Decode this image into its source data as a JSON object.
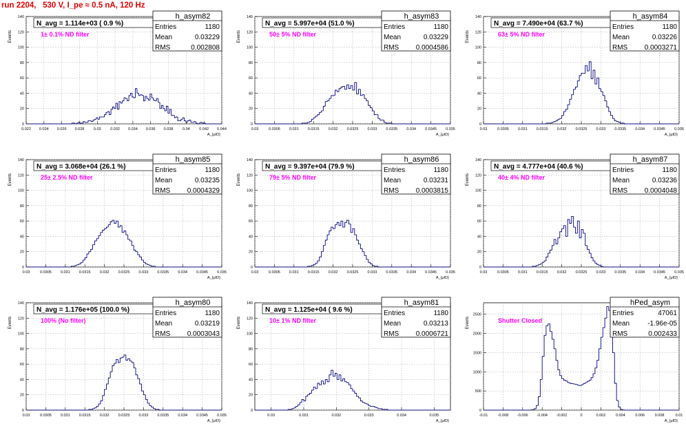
{
  "header": "run 2204,   530 V, I_pe ≈ 0.5 nA, 120 Hz",
  "chart_data": [
    {
      "type": "bar",
      "name": "h_asym82",
      "navg": "N_avg = 1.114e+03 ( 0.9 %)",
      "annotation": "1± 0.1% ND filter",
      "stats": {
        "entries": "1180",
        "mean": "0.03229",
        "rms": "0.002808"
      },
      "ylabel": "Events",
      "xlabel": "A_{μID}",
      "xlim": [
        0.022,
        0.044
      ],
      "ylim": [
        0,
        140
      ],
      "xticks": [
        "0.022",
        "0.024",
        "0.026",
        "0.028",
        "0.03",
        "0.032",
        "0.034",
        "0.036",
        "0.038",
        "0.04",
        "0.042",
        "0.044"
      ],
      "yticks": [
        "0",
        "20",
        "40",
        "60",
        "80",
        "100",
        "120",
        "140"
      ],
      "values": [
        0,
        0,
        0,
        0,
        0,
        0,
        0,
        0,
        0,
        0,
        0,
        0,
        0,
        0,
        0,
        0,
        0,
        0,
        0,
        0,
        0,
        0,
        0,
        0,
        0,
        0,
        0,
        0,
        1,
        1,
        0,
        1,
        2,
        1,
        1,
        3,
        2,
        2,
        4,
        4,
        3,
        5,
        6,
        8,
        6,
        9,
        9,
        9,
        12,
        15,
        16,
        12,
        19,
        22,
        20,
        27,
        19,
        29,
        27,
        30,
        34,
        33,
        30,
        37,
        40,
        35,
        34,
        46,
        40,
        37,
        38,
        37,
        30,
        36,
        33,
        31,
        39,
        34,
        31,
        30,
        33,
        28,
        20,
        24,
        20,
        17,
        23,
        14,
        19,
        11,
        11,
        8,
        9,
        4,
        4,
        6,
        8,
        4,
        2,
        4,
        5,
        2,
        2,
        3,
        1,
        0,
        1,
        2,
        1,
        1,
        0,
        0,
        0,
        0,
        0,
        0,
        0,
        0,
        0,
        0
      ]
    },
    {
      "type": "bar",
      "name": "h_asym83",
      "navg": "N_avg = 5.997e+04 (51.0 %)",
      "annotation": "50± 5% ND filter",
      "stats": {
        "entries": "1180",
        "mean": "0.03229",
        "rms": "0.0004586"
      },
      "ylabel": "Events",
      "xlabel": "A_{μID}",
      "xlim": [
        0.03,
        0.035
      ],
      "ylim": [
        0,
        140
      ],
      "xticks": [
        "0.03",
        "0.0305",
        "0.031",
        "0.0315",
        "0.032",
        "0.0325",
        "0.033",
        "0.0335",
        "0.034",
        "0.0345",
        "0.035"
      ],
      "yticks": [
        "0",
        "20",
        "40",
        "60",
        "80",
        "100",
        "120",
        "140"
      ],
      "values": [
        0,
        0,
        0,
        0,
        0,
        0,
        0,
        0,
        0,
        0,
        0,
        0,
        0,
        0,
        0,
        0,
        0,
        0,
        0,
        0,
        0,
        0,
        0,
        0,
        1,
        1,
        1,
        2,
        3,
        6,
        8,
        10,
        12,
        15,
        17,
        23,
        29,
        30,
        33,
        37,
        37,
        44,
        42,
        46,
        48,
        49,
        45,
        51,
        46,
        50,
        44,
        54,
        39,
        45,
        37,
        38,
        33,
        30,
        24,
        21,
        17,
        12,
        12,
        7,
        5,
        5,
        2,
        1,
        1,
        1,
        0,
        0,
        0,
        0,
        0,
        0,
        0,
        0,
        0,
        0,
        0,
        0,
        0,
        0,
        0,
        0,
        0,
        0,
        0,
        0,
        0,
        0,
        0,
        0,
        0,
        0,
        0,
        0,
        0,
        0
      ]
    },
    {
      "type": "bar",
      "name": "h_asym84",
      "navg": "N_avg = 7.490e+04 (63.7 %)",
      "annotation": "63± 5% ND filter",
      "stats": {
        "entries": "1180",
        "mean": "0.03226",
        "rms": "0.0003271"
      },
      "ylabel": "Events",
      "xlabel": "A_{μID}",
      "xlim": [
        0.03,
        0.035
      ],
      "ylim": [
        0,
        140
      ],
      "xticks": [
        "0.03",
        "0.0305",
        "0.031",
        "0.0315",
        "0.032",
        "0.0325",
        "0.033",
        "0.0335",
        "0.034",
        "0.0345",
        "0.035"
      ],
      "yticks": [
        "0",
        "20",
        "40",
        "60",
        "80",
        "100",
        "120",
        "140"
      ],
      "values": [
        0,
        0,
        0,
        0,
        0,
        0,
        0,
        0,
        0,
        0,
        0,
        0,
        0,
        0,
        0,
        0,
        0,
        0,
        0,
        0,
        0,
        0,
        0,
        0,
        0,
        0,
        0,
        0,
        0,
        0,
        0,
        0,
        1,
        1,
        1,
        2,
        3,
        4,
        6,
        7,
        11,
        16,
        19,
        25,
        32,
        38,
        45,
        48,
        56,
        63,
        66,
        66,
        76,
        69,
        81,
        59,
        70,
        52,
        60,
        46,
        42,
        37,
        30,
        22,
        16,
        11,
        7,
        4,
        3,
        2,
        1,
        1,
        0,
        0,
        0,
        0,
        0,
        0,
        0,
        0,
        0,
        0,
        0,
        0,
        0,
        0,
        0,
        0,
        0,
        0,
        0,
        0,
        0,
        0,
        0,
        0,
        0,
        0,
        0,
        0
      ]
    },
    {
      "type": "bar",
      "name": "h_asym85",
      "navg": "N_avg = 3.068e+04 (26.1 %)",
      "annotation": "25± 2.5% ND filter",
      "stats": {
        "entries": "1180",
        "mean": "0.03235",
        "rms": "0.0004329"
      },
      "ylabel": "Events",
      "xlabel": "A_{μID}",
      "xlim": [
        0.03,
        0.035
      ],
      "ylim": [
        0,
        140
      ],
      "xticks": [
        "0.03",
        "0.0305",
        "0.031",
        "0.0315",
        "0.032",
        "0.0325",
        "0.033",
        "0.0335",
        "0.034",
        "0.0345",
        "0.035"
      ],
      "yticks": [
        "0",
        "20",
        "40",
        "60",
        "80",
        "100",
        "120",
        "140"
      ],
      "values": [
        0,
        0,
        0,
        0,
        0,
        0,
        0,
        0,
        0,
        0,
        0,
        0,
        0,
        0,
        0,
        0,
        0,
        0,
        0,
        0,
        0,
        0,
        0,
        1,
        1,
        2,
        3,
        4,
        6,
        9,
        12,
        17,
        20,
        23,
        29,
        34,
        37,
        41,
        45,
        48,
        50,
        52,
        55,
        59,
        61,
        57,
        60,
        52,
        54,
        45,
        47,
        42,
        36,
        34,
        28,
        22,
        20,
        16,
        13,
        9,
        6,
        4,
        3,
        2,
        1,
        1,
        0,
        0,
        0,
        0,
        0,
        0,
        0,
        0,
        0,
        0,
        0,
        0,
        0,
        0,
        0,
        0,
        0,
        0,
        0,
        0,
        0,
        0,
        0,
        0,
        0,
        0,
        0,
        0,
        0,
        0,
        0,
        0,
        0,
        0
      ]
    },
    {
      "type": "bar",
      "name": "h_asym86",
      "navg": "N_avg = 9.397e+04 (79.9 %)",
      "annotation": "79± 5% ND filter",
      "stats": {
        "entries": "1180",
        "mean": "0.03231",
        "rms": "0.0003815"
      },
      "ylabel": "Events",
      "xlabel": "A_{μID}",
      "xlim": [
        0.03,
        0.035
      ],
      "ylim": [
        0,
        140
      ],
      "xticks": [
        "0.03",
        "0.0305",
        "0.031",
        "0.0315",
        "0.032",
        "0.0325",
        "0.033",
        "0.0335",
        "0.034",
        "0.0345",
        "0.035"
      ],
      "yticks": [
        "0",
        "20",
        "40",
        "60",
        "80",
        "100",
        "120",
        "140"
      ],
      "values": [
        0,
        0,
        0,
        0,
        0,
        0,
        0,
        0,
        0,
        0,
        0,
        0,
        0,
        0,
        0,
        0,
        0,
        0,
        0,
        0,
        0,
        0,
        0,
        0,
        0,
        0,
        0,
        1,
        1,
        2,
        3,
        5,
        8,
        13,
        20,
        28,
        35,
        42,
        47,
        52,
        50,
        55,
        58,
        54,
        60,
        52,
        58,
        61,
        56,
        45,
        50,
        42,
        35,
        30,
        24,
        20,
        15,
        10,
        6,
        4,
        2,
        1,
        1,
        0,
        0,
        0,
        0,
        0,
        0,
        0,
        0,
        0,
        0,
        0,
        0,
        0,
        0,
        0,
        0,
        0,
        0,
        0,
        0,
        0,
        0,
        0,
        0,
        0,
        0,
        0,
        0,
        0,
        0,
        0,
        0,
        0,
        0,
        0,
        0,
        0
      ]
    },
    {
      "type": "bar",
      "name": "h_asym87",
      "navg": "N_avg = 4.777e+04 (40.6 %)",
      "annotation": "40± 4% ND filter",
      "stats": {
        "entries": "1180",
        "mean": "0.03236",
        "rms": "0.0004048"
      },
      "ylabel": "Events",
      "xlabel": "A_{μID}",
      "xlim": [
        0.03,
        0.035
      ],
      "ylim": [
        0,
        140
      ],
      "xticks": [
        "0.03",
        "0.0305",
        "0.031",
        "0.0315",
        "0.032",
        "0.0325",
        "0.033",
        "0.0335",
        "0.034",
        "0.0345",
        "0.035"
      ],
      "yticks": [
        "0",
        "20",
        "40",
        "60",
        "80",
        "100",
        "120",
        "140"
      ],
      "values": [
        0,
        0,
        0,
        0,
        0,
        0,
        0,
        0,
        0,
        0,
        0,
        0,
        0,
        0,
        0,
        0,
        0,
        0,
        0,
        0,
        0,
        0,
        0,
        0,
        0,
        1,
        1,
        2,
        3,
        4,
        6,
        8,
        13,
        18,
        22,
        28,
        36,
        30,
        38,
        46,
        50,
        54,
        40,
        62,
        57,
        66,
        52,
        44,
        60,
        38,
        49,
        44,
        28,
        23,
        18,
        12,
        8,
        5,
        3,
        2,
        1,
        0,
        0,
        0,
        0,
        0,
        0,
        0,
        0,
        0,
        0,
        0,
        0,
        0,
        0,
        0,
        0,
        0,
        0,
        0,
        0,
        0,
        0,
        0,
        0,
        0,
        0,
        0,
        0,
        0,
        0,
        0,
        0,
        0,
        0,
        0,
        0,
        0,
        0,
        0
      ]
    },
    {
      "type": "bar",
      "name": "h_asym80",
      "navg": "N_avg = 1.176e+05 (100.0 %)",
      "annotation": "100% (No filter)",
      "stats": {
        "entries": "1180",
        "mean": "0.03219",
        "rms": "0.0003043"
      },
      "ylabel": "Events",
      "xlabel": "A_{μID}",
      "xlim": [
        0.03,
        0.035
      ],
      "ylim": [
        0,
        140
      ],
      "xticks": [
        "0.03",
        "0.0305",
        "0.031",
        "0.0315",
        "0.032",
        "0.0325",
        "0.033",
        "0.0335",
        "0.034",
        "0.0345",
        "0.035"
      ],
      "yticks": [
        "0",
        "20",
        "40",
        "60",
        "80",
        "100",
        "120",
        "140"
      ],
      "values": [
        0,
        0,
        0,
        0,
        0,
        0,
        0,
        0,
        0,
        0,
        0,
        0,
        0,
        0,
        0,
        0,
        0,
        0,
        0,
        0,
        0,
        0,
        0,
        0,
        0,
        0,
        0,
        0,
        0,
        0,
        0,
        0,
        1,
        1,
        2,
        3,
        5,
        8,
        12,
        19,
        27,
        34,
        42,
        50,
        58,
        61,
        66,
        62,
        68,
        69,
        72,
        65,
        67,
        64,
        62,
        55,
        46,
        41,
        34,
        25,
        20,
        14,
        9,
        6,
        4,
        2,
        1,
        1,
        0,
        0,
        0,
        0,
        0,
        0,
        0,
        0,
        0,
        0,
        0,
        0,
        0,
        0,
        0,
        0,
        0,
        0,
        0,
        0,
        0,
        0,
        0,
        0,
        0,
        0,
        0,
        0,
        0,
        0,
        0,
        0
      ]
    },
    {
      "type": "bar",
      "name": "h_asym81",
      "navg": "N_avg = 1.125e+04 ( 9.6 %)",
      "annotation": "10± 1% ND filter",
      "stats": {
        "entries": "1180",
        "mean": "0.03213",
        "rms": "0.0006721"
      },
      "ylabel": "Events",
      "xlabel": "A_{μID}",
      "xlim": [
        0.0295,
        0.0355
      ],
      "ylim": [
        0,
        140
      ],
      "xticks": [
        "0.03",
        "0.031",
        "0.032",
        "0.033",
        "0.034",
        "0.035"
      ],
      "yticks": [
        "0",
        "20",
        "40",
        "60",
        "80",
        "100",
        "120",
        "140"
      ],
      "values": [
        0,
        0,
        0,
        0,
        0,
        0,
        0,
        0,
        0,
        0,
        0,
        0,
        0,
        0,
        0,
        0,
        0,
        1,
        1,
        2,
        3,
        5,
        7,
        10,
        14,
        12,
        18,
        20,
        22,
        26,
        30,
        28,
        35,
        33,
        38,
        34,
        40,
        37,
        46,
        52,
        44,
        48,
        40,
        46,
        38,
        41,
        37,
        36,
        33,
        28,
        25,
        22,
        18,
        16,
        12,
        10,
        9,
        8,
        6,
        5,
        5,
        4,
        3,
        2,
        2,
        1,
        1,
        1,
        0,
        0,
        0,
        0,
        0,
        0,
        0,
        0,
        0,
        0,
        0,
        0,
        0,
        0,
        0,
        0,
        0,
        0,
        0,
        0,
        0,
        0,
        0,
        0,
        0,
        0,
        0,
        0,
        0,
        0,
        0,
        0
      ]
    },
    {
      "type": "bar",
      "name": "hPed_asym",
      "navg": "",
      "annotation": "Shutter Closed",
      "stats": {
        "entries": "47061",
        "mean": "-1.96e-05",
        "rms": "0.002433"
      },
      "ylabel": "Events",
      "xlabel": "A_{μID}",
      "xlim": [
        -0.01,
        0.01
      ],
      "ylim": [
        0,
        2800
      ],
      "xticks": [
        "-0.01",
        "-0.008",
        "-0.006",
        "-0.004",
        "-0.002",
        "0",
        "0.002",
        "0.004",
        "0.006",
        "0.008",
        "0.01"
      ],
      "yticks": [
        "0",
        "500",
        "1000",
        "1500",
        "2000",
        "2500"
      ],
      "values": [
        0,
        0,
        0,
        0,
        0,
        0,
        0,
        0,
        0,
        0,
        0,
        0,
        0,
        0,
        0,
        0,
        0,
        0,
        0,
        0,
        0,
        0,
        0,
        0,
        3,
        10,
        40,
        120,
        350,
        800,
        1400,
        1950,
        2200,
        2250,
        2050,
        1850,
        1600,
        1300,
        1050,
        900,
        820,
        780,
        760,
        720,
        700,
        690,
        680,
        670,
        650,
        640,
        660,
        690,
        720,
        750,
        780,
        850,
        950,
        1100,
        1300,
        1600,
        1900,
        2150,
        2400,
        2700,
        2600,
        2200,
        1500,
        700,
        250,
        80,
        20,
        5,
        0,
        0,
        0,
        0,
        0,
        0,
        0,
        0,
        0,
        0,
        0,
        0,
        0,
        0,
        0,
        0,
        0,
        0,
        0,
        0,
        0,
        0,
        0,
        0,
        0,
        0,
        0,
        0
      ]
    }
  ]
}
